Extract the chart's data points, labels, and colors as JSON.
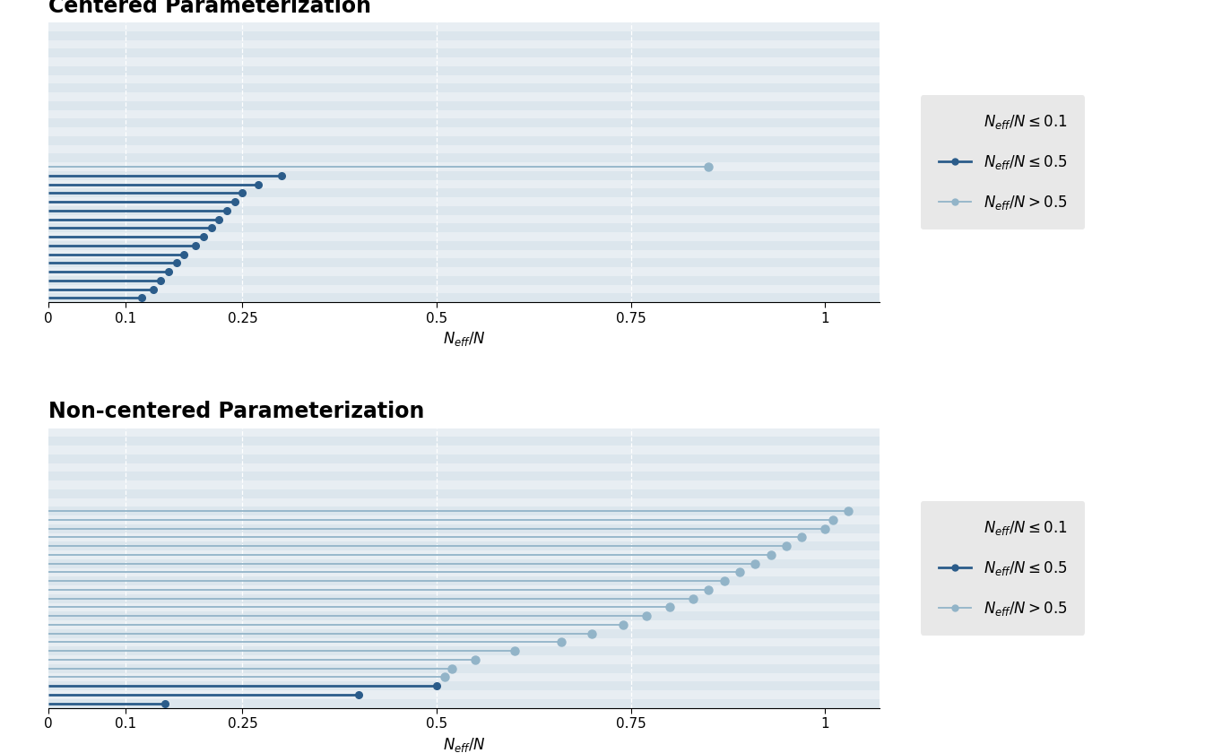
{
  "centered": {
    "values_high": [
      0.85
    ],
    "values_mid": [
      0.3,
      0.27,
      0.25,
      0.24,
      0.23,
      0.22,
      0.21,
      0.2,
      0.19,
      0.175,
      0.165,
      0.155,
      0.145,
      0.135,
      0.12
    ],
    "n_total": 32,
    "title": "Centered Parameterization"
  },
  "noncentered": {
    "values_high": [
      1.03,
      1.01,
      1.0,
      0.97,
      0.95,
      0.93,
      0.91,
      0.89,
      0.87,
      0.85,
      0.83,
      0.8,
      0.77,
      0.74,
      0.7,
      0.66,
      0.6,
      0.55,
      0.52,
      0.51
    ],
    "values_mid": [
      0.5,
      0.4,
      0.15
    ],
    "n_total": 32,
    "title": "Non-centered Parameterization"
  },
  "color_high": "#92b4c8",
  "color_mid": "#2b5c8a",
  "bg_even": "#dce6ed",
  "bg_odd": "#e8eef3",
  "panel_bg": "#e8eef3",
  "xlim": [
    0,
    1.07
  ],
  "xticks": [
    0,
    0.1,
    0.25,
    0.5,
    0.75,
    1.0
  ],
  "xticklabels": [
    "0",
    "0.1",
    "0.25",
    "0.5",
    "0.75",
    "1"
  ],
  "legend_labels_math": [
    "$N_{eff}/N \\leq 0.1$",
    "$N_{eff}/N \\leq 0.5$",
    "$N_{eff}/N > 0.5$"
  ],
  "grid_color": "#b0bec8",
  "title_fontsize": 17,
  "axis_fontsize": 11,
  "legend_fontsize": 12
}
